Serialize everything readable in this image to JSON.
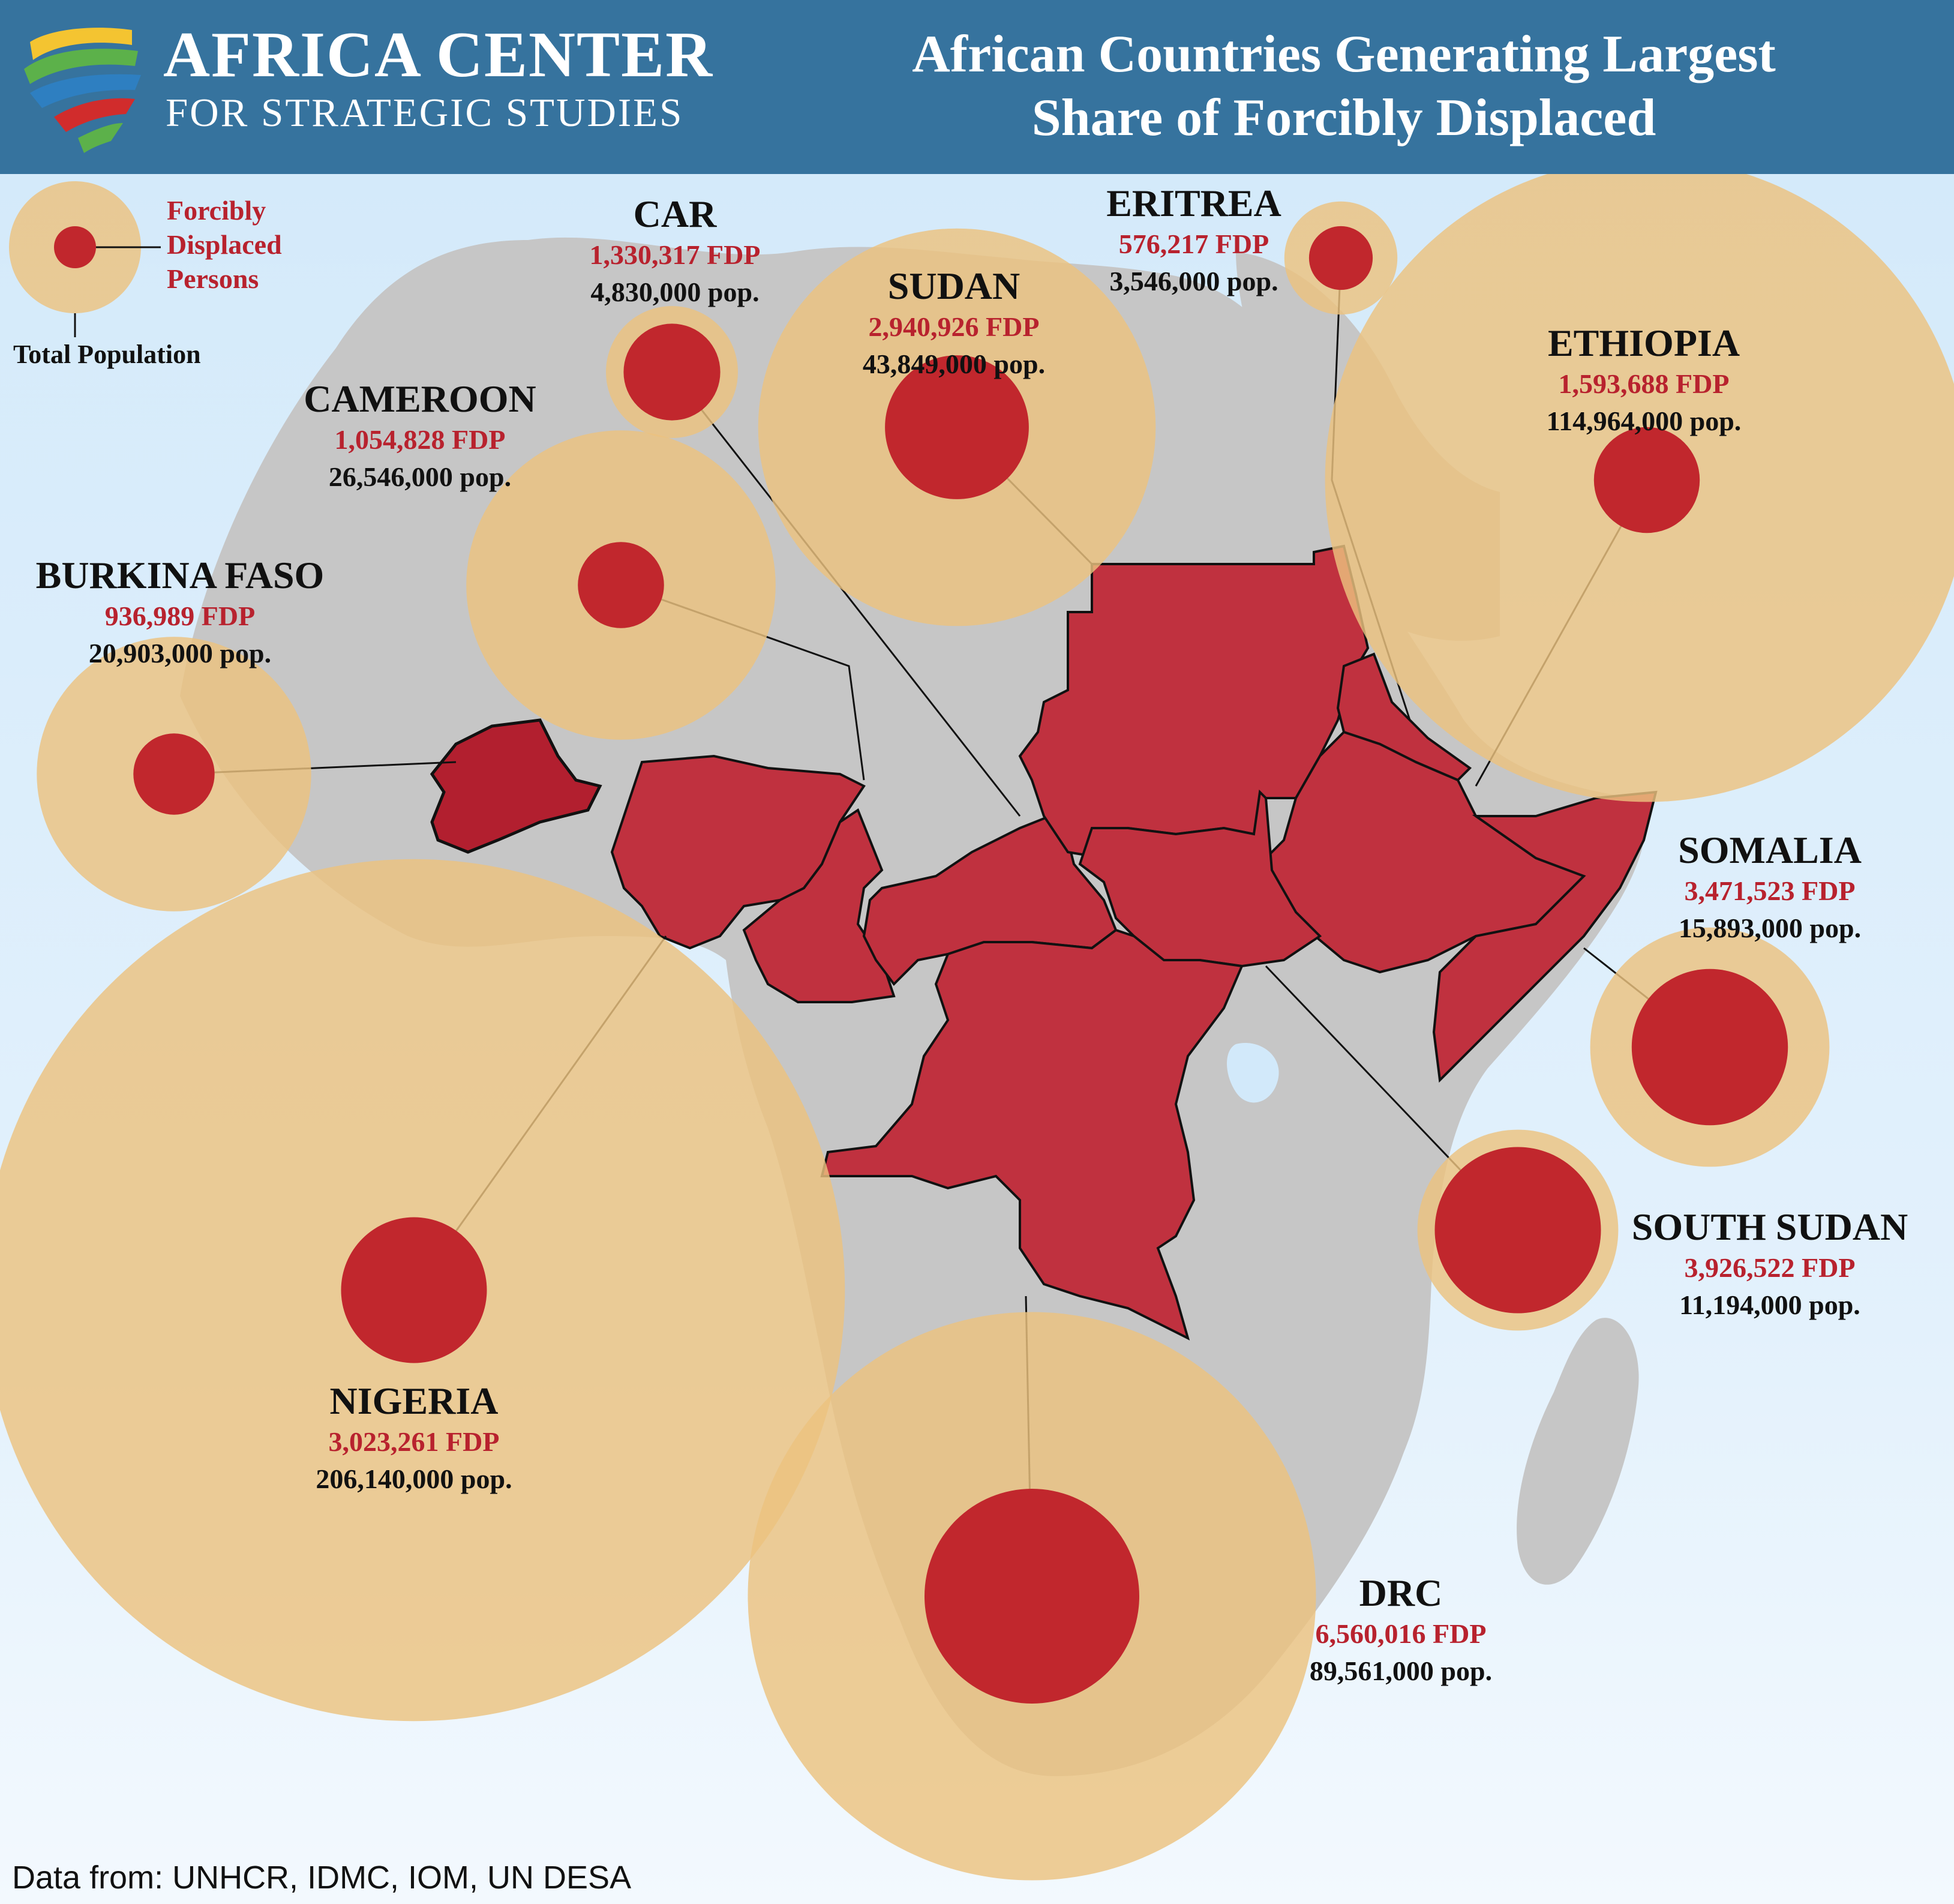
{
  "header": {
    "org_line1": "AFRICA CENTER",
    "org_line2": "FOR STRATEGIC STUDIES",
    "title_line1": "African Countries Generating Largest",
    "title_line2": "Share of Forcibly Displaced"
  },
  "legend": {
    "inner_label_line1": "Forcibly",
    "inner_label_line2": "Displaced",
    "inner_label_line3": "Persons",
    "outer_label": "Total Population"
  },
  "colors": {
    "header_bg": "#36739e",
    "population_circle": "#ecc27f",
    "fdp_circle": "#c1272d",
    "highlighted_country": "#c0313f",
    "land": "#c6c6c6"
  },
  "countries": [
    {
      "key": "car",
      "name": "CAR",
      "fdp": "1,330,317 FDP",
      "pop": "4,830,000 pop.",
      "fdp_value": 1330317,
      "pop_value": 4830000
    },
    {
      "key": "sudan",
      "name": "SUDAN",
      "fdp": "2,940,926 FDP",
      "pop": "43,849,000 pop.",
      "fdp_value": 2940926,
      "pop_value": 43849000
    },
    {
      "key": "eritrea",
      "name": "ERITREA",
      "fdp": "576,217 FDP",
      "pop": "3,546,000 pop.",
      "fdp_value": 576217,
      "pop_value": 3546000
    },
    {
      "key": "ethiopia",
      "name": "ETHIOPIA",
      "fdp": "1,593,688 FDP",
      "pop": "114,964,000 pop.",
      "fdp_value": 1593688,
      "pop_value": 114964000
    },
    {
      "key": "cameroon",
      "name": "CAMEROON",
      "fdp": "1,054,828 FDP",
      "pop": "26,546,000 pop.",
      "fdp_value": 1054828,
      "pop_value": 26546000
    },
    {
      "key": "burkina_faso",
      "name": "BURKINA FASO",
      "fdp": "936,989 FDP",
      "pop": "20,903,000 pop.",
      "fdp_value": 936989,
      "pop_value": 20903000
    },
    {
      "key": "somalia",
      "name": "SOMALIA",
      "fdp": "3,471,523 FDP",
      "pop": "15,893,000 pop.",
      "fdp_value": 3471523,
      "pop_value": 15893000
    },
    {
      "key": "south_sudan",
      "name": "SOUTH SUDAN",
      "fdp": "3,926,522 FDP",
      "pop": "11,194,000 pop.",
      "fdp_value": 3926522,
      "pop_value": 11194000
    },
    {
      "key": "nigeria",
      "name": "NIGERIA",
      "fdp": "3,023,261 FDP",
      "pop": "206,140,000 pop.",
      "fdp_value": 3023261,
      "pop_value": 206140000
    },
    {
      "key": "drc",
      "name": "DRC",
      "fdp": "6,560,016 FDP",
      "pop": "89,561,000 pop.",
      "fdp_value": 6560016,
      "pop_value": 89561000
    }
  ],
  "source": "Data from: UNHCR, IDMC, IOM, UN DESA"
}
